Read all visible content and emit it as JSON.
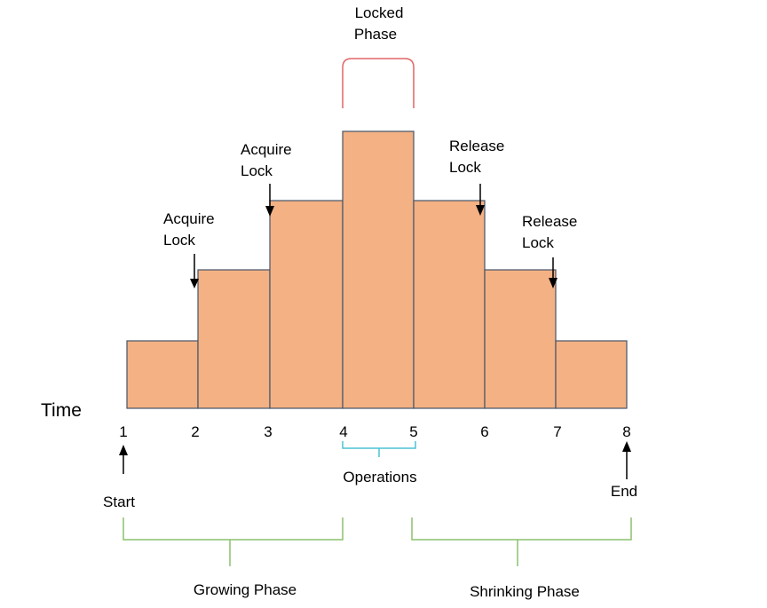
{
  "diagram": {
    "time_label": "Time",
    "ticks": [
      "1",
      "2",
      "3",
      "4",
      "5",
      "6",
      "7",
      "8"
    ],
    "step_values": [
      1,
      2,
      3,
      4,
      3,
      2,
      1
    ],
    "annotations": {
      "locked_phase": [
        "Locked",
        "Phase"
      ],
      "acquire_lock_1": [
        "Acquire",
        "Lock"
      ],
      "acquire_lock_2": [
        "Acquire",
        "Lock"
      ],
      "release_lock_1": [
        "Release",
        "Lock"
      ],
      "release_lock_2": [
        "Release",
        "Lock"
      ],
      "operations": "Operations",
      "start": "Start",
      "end": "End",
      "growing_phase": "Growing Phase",
      "shrinking_phase": "Shrinking Phase"
    },
    "colors": {
      "bar_fill": "#f4b183",
      "bar_stroke": "#44546a",
      "locked_bracket": "#e06666",
      "operations_bracket": "#4bc4d4",
      "phase_bracket": "#8cc06e",
      "arrow": "#000000"
    }
  }
}
